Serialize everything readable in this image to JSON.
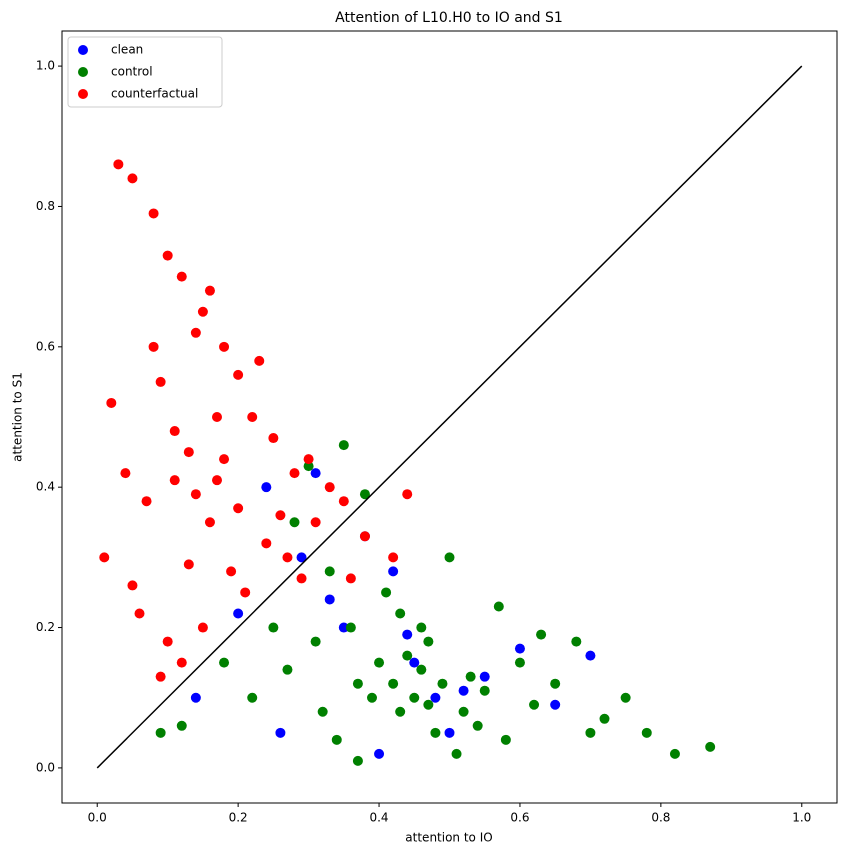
{
  "chart_data": {
    "type": "scatter",
    "title": "Attention of L10.H0 to IO and S1",
    "xlabel": "attention to IO",
    "ylabel": "attention to S1",
    "xlim": [
      -0.05,
      1.05
    ],
    "ylim": [
      -0.05,
      1.05
    ],
    "xticks": [
      {
        "value": 0,
        "label": "0.0"
      },
      0.2,
      0.4,
      0.6,
      0.8,
      {
        "value": 1,
        "label": "1.0"
      }
    ],
    "yticks": [
      {
        "value": 0,
        "label": "0.0"
      },
      0.2,
      0.4,
      0.6,
      0.8,
      {
        "value": 1,
        "label": "1.0"
      }
    ],
    "grid": false,
    "legend": "upper left",
    "reference_line": {
      "x": [
        0,
        1
      ],
      "y": [
        0,
        1
      ],
      "color": "#000000"
    },
    "series": [
      {
        "name": "clean",
        "color": "#0000ff",
        "x": [
          0.14,
          0.2,
          0.24,
          0.29,
          0.31,
          0.35,
          0.38,
          0.4,
          0.42,
          0.45,
          0.48,
          0.5,
          0.55,
          0.6,
          0.65,
          0.7,
          0.26,
          0.33,
          0.44,
          0.52
        ],
        "y": [
          0.1,
          0.22,
          0.4,
          0.3,
          0.42,
          0.2,
          0.33,
          0.02,
          0.28,
          0.15,
          0.1,
          0.05,
          0.13,
          0.17,
          0.09,
          0.16,
          0.05,
          0.24,
          0.19,
          0.11
        ]
      },
      {
        "name": "control",
        "color": "#008000",
        "x": [
          0.09,
          0.12,
          0.18,
          0.22,
          0.25,
          0.28,
          0.3,
          0.32,
          0.35,
          0.37,
          0.38,
          0.4,
          0.42,
          0.43,
          0.45,
          0.46,
          0.47,
          0.48,
          0.5,
          0.52,
          0.53,
          0.55,
          0.57,
          0.6,
          0.62,
          0.65,
          0.68,
          0.7,
          0.72,
          0.75,
          0.78,
          0.82,
          0.87,
          0.33,
          0.36,
          0.41,
          0.44,
          0.49,
          0.51,
          0.39,
          0.43,
          0.46,
          0.54,
          0.58,
          0.27,
          0.31,
          0.37,
          0.63,
          0.34,
          0.47
        ],
        "y": [
          0.05,
          0.06,
          0.15,
          0.1,
          0.2,
          0.35,
          0.43,
          0.08,
          0.46,
          0.01,
          0.39,
          0.15,
          0.12,
          0.22,
          0.1,
          0.14,
          0.18,
          0.05,
          0.3,
          0.08,
          0.13,
          0.11,
          0.23,
          0.15,
          0.09,
          0.12,
          0.18,
          0.05,
          0.07,
          0.1,
          0.05,
          0.02,
          0.03,
          0.28,
          0.2,
          0.25,
          0.16,
          0.12,
          0.02,
          0.1,
          0.08,
          0.2,
          0.06,
          0.04,
          0.14,
          0.18,
          0.12,
          0.19,
          0.04,
          0.09
        ]
      },
      {
        "name": "counterfactual",
        "color": "#ff0000",
        "x": [
          0.03,
          0.05,
          0.08,
          0.1,
          0.12,
          0.15,
          0.18,
          0.2,
          0.22,
          0.25,
          0.28,
          0.3,
          0.33,
          0.35,
          0.38,
          0.42,
          0.44,
          0.02,
          0.04,
          0.07,
          0.09,
          0.11,
          0.13,
          0.14,
          0.16,
          0.17,
          0.19,
          0.21,
          0.24,
          0.27,
          0.06,
          0.1,
          0.12,
          0.15,
          0.2,
          0.26,
          0.31,
          0.36,
          0.01,
          0.08,
          0.13,
          0.17,
          0.23,
          0.29,
          0.11,
          0.14,
          0.18,
          0.05,
          0.09,
          0.16
        ],
        "y": [
          0.86,
          0.84,
          0.79,
          0.73,
          0.7,
          0.65,
          0.6,
          0.56,
          0.5,
          0.47,
          0.42,
          0.44,
          0.4,
          0.38,
          0.33,
          0.3,
          0.39,
          0.52,
          0.42,
          0.38,
          0.55,
          0.48,
          0.45,
          0.62,
          0.35,
          0.41,
          0.28,
          0.25,
          0.32,
          0.3,
          0.22,
          0.18,
          0.15,
          0.2,
          0.37,
          0.36,
          0.35,
          0.27,
          0.3,
          0.6,
          0.29,
          0.5,
          0.58,
          0.27,
          0.41,
          0.39,
          0.44,
          0.26,
          0.13,
          0.68
        ]
      }
    ]
  }
}
